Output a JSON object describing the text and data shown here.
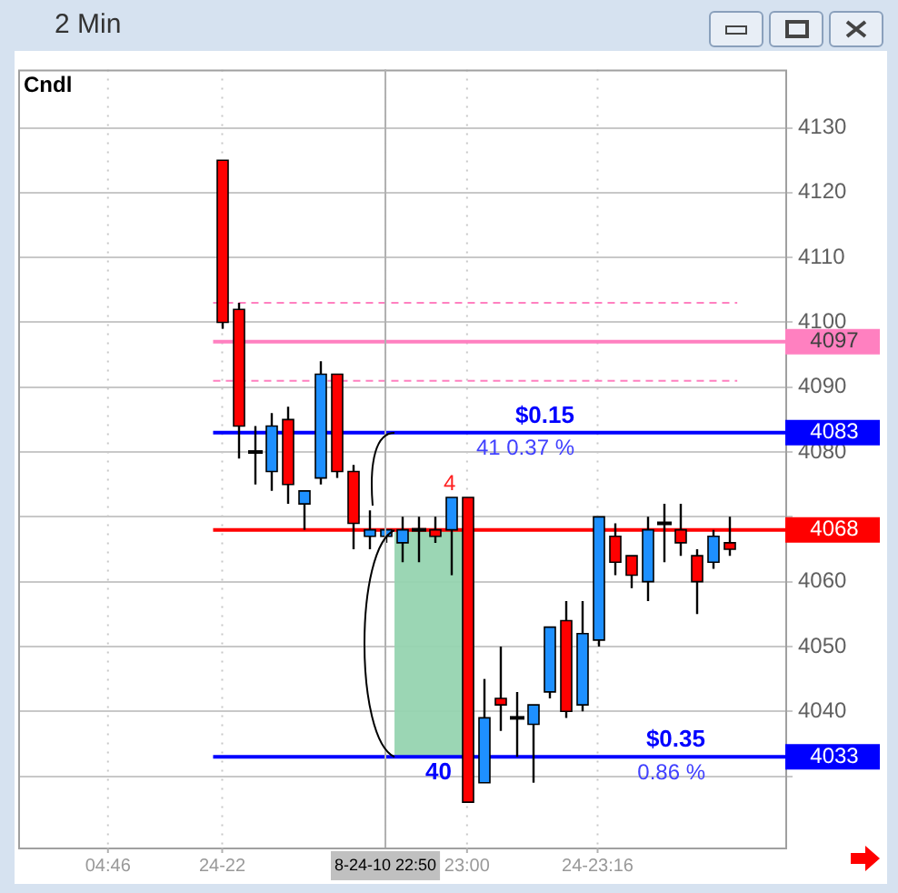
{
  "chart_data": {
    "type": "candlestick",
    "title": "2 Min",
    "categories": [
      null,
      null,
      null,
      null,
      null,
      "04:46",
      null,
      null,
      null,
      null,
      null,
      null,
      "24-22",
      null,
      null,
      null,
      null,
      null,
      null,
      null,
      null,
      null,
      "8-24-10 22:50",
      null,
      null,
      null,
      null,
      "23:00",
      null,
      null,
      null,
      null,
      null,
      null,
      null,
      "24-23:16",
      null,
      null,
      null,
      null,
      null,
      null,
      null,
      null,
      null,
      null,
      null
    ],
    "ohlc": [
      null,
      null,
      null,
      null,
      null,
      null,
      null,
      null,
      null,
      null,
      null,
      null,
      [
        4125,
        4125,
        4099,
        4100
      ],
      [
        4102,
        4103,
        4079,
        4084
      ],
      [
        4080,
        4084,
        4075,
        4080
      ],
      [
        4077,
        4086,
        4074,
        4084
      ],
      [
        4085,
        4087,
        4072,
        4075
      ],
      [
        4072,
        4074,
        4068,
        4074
      ],
      [
        4076,
        4094,
        4075,
        4092
      ],
      [
        4092,
        4092,
        4076,
        4077
      ],
      [
        4077,
        4078,
        4065,
        4069
      ],
      [
        4067,
        4071,
        4065,
        4068
      ],
      [
        4067,
        4068,
        4066,
        4068
      ],
      [
        4066,
        4070,
        4063,
        4068
      ],
      [
        4068,
        4070,
        4063,
        4068
      ],
      [
        4068,
        4070,
        4066,
        4067
      ],
      [
        4068,
        4073,
        4061,
        4073
      ],
      [
        4073,
        4073,
        4026,
        4026
      ],
      [
        4029,
        4045,
        4029,
        4039
      ],
      [
        4042,
        4050,
        4037,
        4041
      ],
      [
        4039,
        4043,
        4033,
        4039
      ],
      [
        4038,
        4041,
        4029,
        4041
      ],
      [
        4043,
        4053,
        4042,
        4053
      ],
      [
        4054,
        4057,
        4039,
        4040
      ],
      [
        4041,
        4057,
        4040,
        4052
      ],
      [
        4051,
        4070,
        4050,
        4070
      ],
      [
        4067,
        4069,
        4061,
        4063
      ],
      [
        4064,
        4064,
        4059,
        4061
      ],
      [
        4060,
        4070,
        4057,
        4068
      ],
      [
        4069,
        4072,
        4063,
        4069
      ],
      [
        4068,
        4072,
        4064,
        4066
      ],
      [
        4064,
        4065,
        4055,
        4060
      ],
      [
        4063,
        4068,
        4062,
        4067
      ],
      [
        4066,
        4070,
        4064,
        4065
      ],
      null,
      null,
      null
    ],
    "colors": [
      null,
      null,
      null,
      null,
      null,
      null,
      null,
      null,
      null,
      null,
      null,
      null,
      "#ff0000",
      "#ff0000",
      "#000000",
      "#1e90ff",
      "#ff0000",
      "#1e90ff",
      "#1e90ff",
      "#ff0000",
      "#ff0000",
      "#1e90ff",
      "#1e90ff",
      "#1e90ff",
      "#000000",
      "#ff0000",
      "#1e90ff",
      "#ff0000",
      "#1e90ff",
      "#ff0000",
      "#000000",
      "#1e90ff",
      "#1e90ff",
      "#ff0000",
      "#1e90ff",
      "#1e90ff",
      "#ff0000",
      "#ff0000",
      "#1e90ff",
      "#000000",
      "#ff0000",
      "#ff0000",
      "#1e90ff",
      "#ff0000",
      null,
      null,
      null
    ],
    "ylim": [
      4019,
      4139
    ],
    "yticks": [
      {
        "value": 4030,
        "label": null
      },
      4040,
      4050,
      4060,
      {
        "value": 4070,
        "label": null
      },
      4080,
      4090,
      4100,
      4110,
      4120,
      4130
    ],
    "grid": true,
    "ref_lines": [
      {
        "axis": "y",
        "value": 4103,
        "color": "#ff80c0",
        "line_style": "dashed"
      },
      {
        "axis": "y",
        "value": 4091,
        "color": "#ff80c0",
        "line_style": "dashed"
      },
      {
        "axis": "y",
        "value": 4097,
        "label": "4097",
        "color": "#ff80c0"
      },
      {
        "axis": "y",
        "value": 4083,
        "label": "4083",
        "color": "#0000ff"
      },
      {
        "axis": "y",
        "value": 4068,
        "label": "4068",
        "color": "#ff0000"
      },
      {
        "axis": "y",
        "value": 4033,
        "label": "4033",
        "color": "#0000ff"
      }
    ],
    "bands": [
      {
        "axis": "y",
        "from": 4033,
        "to": 4068,
        "color": "#96d4b0"
      }
    ],
    "annotations": [
      "Cndl",
      {
        "text": "$0.15",
        "y": 4083
      },
      {
        "text": "41 0.37 %",
        "y": 4083
      },
      {
        "text": "$0.35",
        "y": 4033
      },
      {
        "text": "0.86 %",
        "y": 4033
      },
      {
        "text": "40",
        "y": 4033
      },
      {
        "text": "4",
        "y": 4068
      }
    ]
  }
}
